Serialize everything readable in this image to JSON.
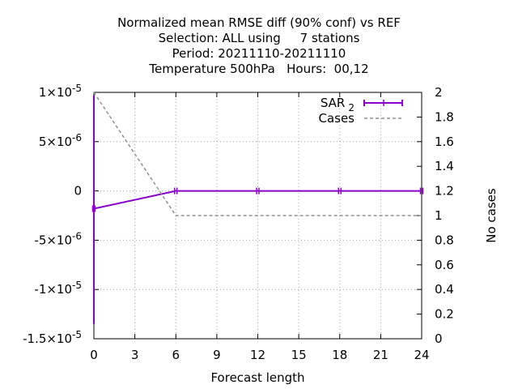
{
  "chart_data": {
    "type": "line",
    "title_lines": [
      "Normalized mean RMSE diff (90% conf) vs REF",
      "Selection: ALL using     7 stations",
      "Period: 20211110-20211110",
      "Temperature 500hPa   Hours:  00,12"
    ],
    "xlabel": "Forecast length",
    "ylabel": "",
    "y2label": "No cases",
    "xlim": [
      0,
      24
    ],
    "ylim": [
      -1.5e-05,
      1e-05
    ],
    "y2lim": [
      0,
      2
    ],
    "x_ticks": [
      "0",
      "3",
      "6",
      "9",
      "12",
      "15",
      "18",
      "21",
      "24"
    ],
    "y_ticks": [
      {
        "mant": "1×10",
        "exp": "-5",
        "value": 1e-05
      },
      {
        "mant": "5×10",
        "exp": "-6",
        "value": 5e-06
      },
      {
        "mant": "0",
        "exp": "",
        "value": 0
      },
      {
        "mant": "-5×10",
        "exp": "-6",
        "value": -5e-06
      },
      {
        "mant": "-1×10",
        "exp": "-5",
        "value": -1e-05
      },
      {
        "mant": "-1.5×10",
        "exp": "-5",
        "value": -1.5e-05
      }
    ],
    "y2_ticks": [
      "0",
      "0.2",
      "0.4",
      "0.6",
      "0.8",
      "1",
      "1.2",
      "1.4",
      "1.6",
      "1.8",
      "2"
    ],
    "grid": true,
    "legend_position": "top-right",
    "series": [
      {
        "name": "SAR",
        "name_sub": "2",
        "color": "#8a00c8",
        "style": "line-errorbars",
        "axis": "y",
        "x": [
          0,
          6,
          12,
          18,
          24
        ],
        "y": [
          -1.8e-06,
          0,
          0,
          0,
          0
        ],
        "err_low": [
          -1.35e-05,
          0,
          0,
          0,
          0
        ],
        "err_high": [
          9.7e-06,
          0,
          0,
          0,
          0
        ]
      },
      {
        "name": "Cases",
        "color": "#909090",
        "style": "dashed",
        "axis": "y2",
        "x": [
          0,
          6,
          12,
          18,
          24
        ],
        "y": [
          2,
          1,
          1,
          1,
          1
        ]
      }
    ]
  }
}
